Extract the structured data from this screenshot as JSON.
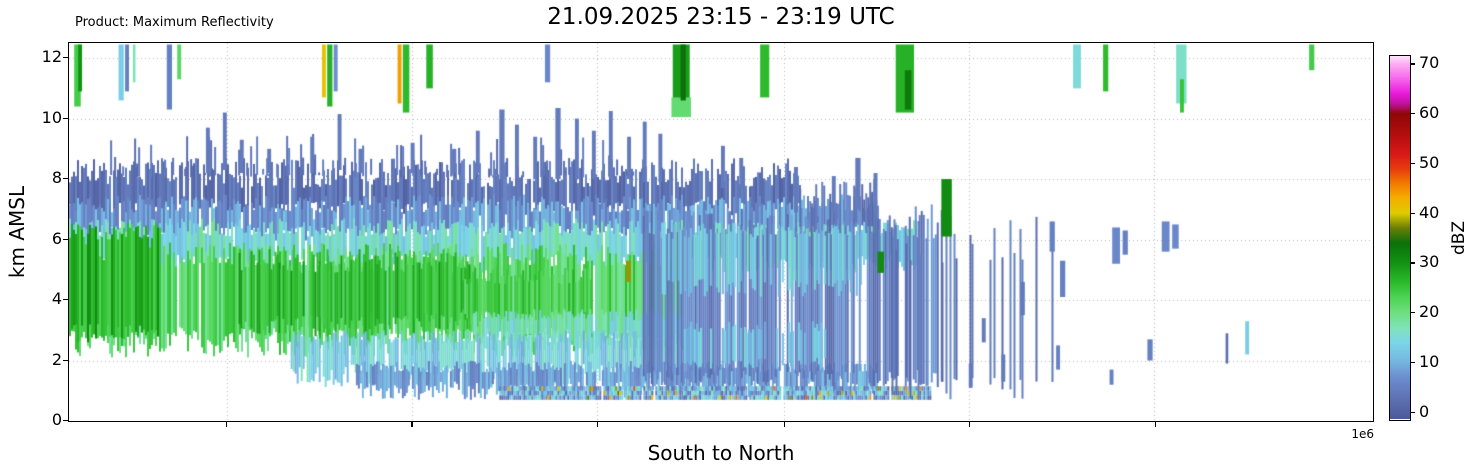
{
  "chart_data": {
    "type": "heatmap",
    "product_label": "Product: Maximum Reflectivity",
    "title": "21.09.2025 23:15 - 23:19 UTC",
    "xlabel": "South to North",
    "ylabel": "km AMSL",
    "x_offset_label": "1e6",
    "ylim": [
      0,
      12.5
    ],
    "yticks": [
      0,
      2,
      4,
      6,
      8,
      10,
      12
    ],
    "x_gridlines": [
      0.121,
      0.263,
      0.405,
      0.548,
      0.69,
      0.832
    ],
    "grid": "dotted",
    "colorbar": {
      "label": "dBZ",
      "ticks": [
        0,
        10,
        20,
        30,
        40,
        50,
        60,
        70
      ],
      "range": [
        -1.5,
        71.5
      ],
      "stops": [
        [
          -1.5,
          "#4d5898"
        ],
        [
          3,
          "#5f74b5"
        ],
        [
          7,
          "#6d8ecf"
        ],
        [
          10,
          "#74b6e0"
        ],
        [
          14,
          "#7cd6e8"
        ],
        [
          17,
          "#7fe3b8"
        ],
        [
          20,
          "#6fdf80"
        ],
        [
          23,
          "#4ed455"
        ],
        [
          26,
          "#2dbb2d"
        ],
        [
          30,
          "#139313"
        ],
        [
          34,
          "#0b710b"
        ],
        [
          37,
          "#6b7f06"
        ],
        [
          40,
          "#e0cc00"
        ],
        [
          43,
          "#f5ae00"
        ],
        [
          46,
          "#f27a00"
        ],
        [
          49,
          "#e83a10"
        ],
        [
          52,
          "#d81818"
        ],
        [
          56,
          "#b00e0e"
        ],
        [
          60,
          "#8f0707"
        ],
        [
          62,
          "#c012a0"
        ],
        [
          64,
          "#e81ad8"
        ],
        [
          67,
          "#f765ec"
        ],
        [
          70,
          "#fcaef4"
        ],
        [
          71.5,
          "#ffe2fb"
        ]
      ]
    },
    "regions_format": "x0/x1 fraction of axis, y0/y1 km AMSL, dbz base value, var random spread, density fill fraction, jt/jb top/bottom edge jitter (km)",
    "regions": [
      {
        "x0": 0.0,
        "x1": 0.56,
        "y0": 7.0,
        "y1": 8.2,
        "dbz": 3,
        "var": 3,
        "density": 0.93,
        "jt": 0.5,
        "jb": 0.25
      },
      {
        "x0": 0.0,
        "x1": 0.62,
        "y0": 6.2,
        "y1": 7.2,
        "dbz": 8,
        "var": 4,
        "density": 0.95,
        "jt": 0.3,
        "jb": 0.25
      },
      {
        "x0": 0.0,
        "x1": 0.65,
        "y0": 5.2,
        "y1": 6.4,
        "dbz": 15,
        "var": 4,
        "density": 0.95,
        "jt": 0.3,
        "jb": 0.3
      },
      {
        "x0": 0.0,
        "x1": 0.47,
        "y0": 2.6,
        "y1": 5.5,
        "dbz": 22,
        "var": 4,
        "density": 0.97,
        "jt": 0.4,
        "jb": 0.5
      },
      {
        "x0": 0.0,
        "x1": 0.07,
        "y0": 2.9,
        "y1": 6.3,
        "dbz": 27,
        "var": 4,
        "density": 0.9,
        "jt": 0.3,
        "jb": 0.3
      },
      {
        "x0": 0.13,
        "x1": 0.31,
        "y0": 3.2,
        "y1": 5.3,
        "dbz": 26,
        "var": 4,
        "density": 0.9,
        "jt": 0.4,
        "jb": 0.4
      },
      {
        "x0": 0.3,
        "x1": 0.4,
        "y0": 3.4,
        "y1": 4.8,
        "dbz": 24,
        "var": 3,
        "density": 0.85,
        "jt": 0.3,
        "jb": 0.3
      },
      {
        "x0": 0.31,
        "x1": 0.47,
        "y0": 2.6,
        "y1": 3.5,
        "dbz": 16,
        "var": 4,
        "density": 0.9,
        "jt": 0.2,
        "jb": 0.3
      },
      {
        "x0": 0.17,
        "x1": 0.47,
        "y0": 1.5,
        "y1": 2.8,
        "dbz": 13,
        "var": 4,
        "density": 0.9,
        "jt": 0.2,
        "jb": 0.4
      },
      {
        "x0": 0.22,
        "x1": 0.62,
        "y0": 1.0,
        "y1": 1.8,
        "dbz": 8,
        "var": 4,
        "density": 0.88,
        "jt": 0.2,
        "jb": 0.3
      },
      {
        "x0": 0.44,
        "x1": 0.67,
        "y0": 1.4,
        "y1": 6.6,
        "dbz": 5,
        "var": 4,
        "density": 0.8,
        "jt": 0.6,
        "jb": 0.3
      },
      {
        "x0": 0.45,
        "x1": 0.61,
        "y0": 4.4,
        "y1": 6.3,
        "dbz": 13,
        "var": 3,
        "density": 0.55,
        "jt": 0.3,
        "jb": 0.3
      },
      {
        "x0": 0.47,
        "x1": 0.58,
        "y0": 1.9,
        "y1": 3.1,
        "dbz": 12,
        "var": 3,
        "density": 0.5,
        "jt": 0.2,
        "jb": 0.2
      },
      {
        "x0": 0.33,
        "x1": 0.66,
        "y0": 0.7,
        "y1": 1.15,
        "dbz": 9,
        "var": 8,
        "density": 0.95,
        "jt": 0.05,
        "jb": 0.05,
        "speckle": true
      },
      {
        "x0": 0.62,
        "x1": 0.76,
        "y0": 1.0,
        "y1": 6.0,
        "dbz": 4,
        "var": 3,
        "density": 0.22,
        "jt": 0.8,
        "jb": 0.5
      },
      {
        "x0": 0.56,
        "x1": 0.62,
        "y0": 6.4,
        "y1": 7.6,
        "dbz": 4,
        "var": 3,
        "density": 0.6,
        "jt": 0.4,
        "jb": 0.2
      },
      {
        "x0": 0.03,
        "x1": 0.44,
        "y0": 8.1,
        "y1": 8.8,
        "dbz": 3,
        "var": 2,
        "density": 0.3,
        "jt": 0.7,
        "jb": 0.05
      }
    ],
    "spikes_format": [
      "x_fraction",
      "width_fraction",
      "y0_km",
      "y1_km",
      "dbz"
    ],
    "spikes": [
      [
        0.004,
        0.005,
        10.4,
        12.45,
        24
      ],
      [
        0.007,
        0.003,
        10.9,
        12.45,
        30
      ],
      [
        0.038,
        0.004,
        10.6,
        12.45,
        13
      ],
      [
        0.043,
        0.003,
        10.9,
        12.45,
        5
      ],
      [
        0.049,
        0.002,
        11.2,
        12.45,
        17
      ],
      [
        0.075,
        0.004,
        10.3,
        12.45,
        5
      ],
      [
        0.083,
        0.003,
        11.3,
        12.45,
        22
      ],
      [
        0.194,
        0.003,
        10.7,
        12.45,
        41
      ],
      [
        0.198,
        0.004,
        10.4,
        12.45,
        27
      ],
      [
        0.203,
        0.003,
        10.9,
        12.45,
        7
      ],
      [
        0.252,
        0.003,
        10.5,
        12.45,
        44
      ],
      [
        0.256,
        0.005,
        10.2,
        12.45,
        26
      ],
      [
        0.274,
        0.005,
        11.0,
        12.45,
        27
      ],
      [
        0.365,
        0.004,
        11.2,
        12.45,
        6
      ],
      [
        0.463,
        0.013,
        10.4,
        12.45,
        29
      ],
      [
        0.462,
        0.015,
        10.05,
        10.7,
        21
      ],
      [
        0.469,
        0.004,
        10.6,
        12.45,
        34
      ],
      [
        0.53,
        0.007,
        10.7,
        12.45,
        26
      ],
      [
        0.634,
        0.014,
        10.2,
        12.45,
        27
      ],
      [
        0.641,
        0.005,
        10.3,
        11.6,
        33
      ],
      [
        0.77,
        0.006,
        11.0,
        12.45,
        15
      ],
      [
        0.793,
        0.004,
        10.9,
        12.45,
        26
      ],
      [
        0.849,
        0.008,
        10.5,
        12.45,
        16
      ],
      [
        0.852,
        0.003,
        10.2,
        11.3,
        25
      ],
      [
        0.951,
        0.004,
        11.6,
        12.45,
        24
      ],
      [
        0.105,
        0.003,
        8.2,
        9.7,
        4
      ],
      [
        0.118,
        0.003,
        8.3,
        10.2,
        4
      ],
      [
        0.131,
        0.003,
        8.2,
        9.3,
        4
      ],
      [
        0.152,
        0.003,
        8.2,
        9.0,
        4
      ],
      [
        0.185,
        0.003,
        8.2,
        9.4,
        4
      ],
      [
        0.206,
        0.003,
        8.3,
        10.15,
        4
      ],
      [
        0.222,
        0.003,
        8.2,
        9.0,
        4
      ],
      [
        0.262,
        0.003,
        8.2,
        9.2,
        4
      ],
      [
        0.294,
        0.003,
        8.2,
        9.0,
        4
      ],
      [
        0.312,
        0.003,
        8.2,
        9.6,
        4
      ],
      [
        0.33,
        0.004,
        8.0,
        10.3,
        4
      ],
      [
        0.342,
        0.003,
        8.0,
        9.8,
        4
      ],
      [
        0.356,
        0.003,
        8.0,
        9.4,
        4
      ],
      [
        0.373,
        0.004,
        8.0,
        10.35,
        4
      ],
      [
        0.388,
        0.003,
        8.0,
        10.0,
        4
      ],
      [
        0.401,
        0.003,
        8.0,
        9.6,
        4
      ],
      [
        0.414,
        0.003,
        8.0,
        10.25,
        4
      ],
      [
        0.428,
        0.003,
        8.0,
        9.4,
        4
      ],
      [
        0.44,
        0.003,
        7.9,
        9.9,
        4
      ],
      [
        0.452,
        0.003,
        7.9,
        9.5,
        4
      ],
      [
        0.5,
        0.003,
        7.7,
        9.1,
        4
      ],
      [
        0.514,
        0.003,
        7.7,
        8.7,
        4
      ],
      [
        0.556,
        0.003,
        6.9,
        8.4,
        4
      ],
      [
        0.585,
        0.003,
        6.9,
        8.1,
        4
      ],
      [
        0.603,
        0.004,
        7.0,
        8.7,
        4
      ],
      [
        0.617,
        0.003,
        6.9,
        8.2,
        4
      ],
      [
        0.427,
        0.004,
        4.6,
        5.3,
        38
      ],
      [
        0.62,
        0.005,
        4.9,
        5.6,
        31
      ],
      [
        0.669,
        0.008,
        6.1,
        8.0,
        31
      ],
      [
        0.752,
        0.004,
        5.6,
        6.6,
        5
      ],
      [
        0.76,
        0.004,
        4.1,
        5.3,
        5
      ],
      [
        0.757,
        0.003,
        1.7,
        2.5,
        5
      ],
      [
        0.8,
        0.006,
        5.2,
        6.4,
        6
      ],
      [
        0.808,
        0.004,
        5.5,
        6.3,
        5
      ],
      [
        0.798,
        0.003,
        1.2,
        1.7,
        5
      ],
      [
        0.827,
        0.004,
        2.0,
        2.7,
        5
      ],
      [
        0.838,
        0.006,
        5.6,
        6.6,
        6
      ],
      [
        0.846,
        0.005,
        5.7,
        6.5,
        6
      ],
      [
        0.887,
        0.002,
        1.9,
        2.9,
        2
      ],
      [
        0.902,
        0.003,
        2.2,
        3.3,
        13
      ],
      [
        0.69,
        0.003,
        1.1,
        1.9,
        4
      ],
      [
        0.7,
        0.003,
        2.6,
        3.4,
        4
      ],
      [
        0.715,
        0.003,
        1.3,
        2.2,
        4
      ],
      [
        0.73,
        0.003,
        3.5,
        4.6,
        4
      ]
    ]
  }
}
